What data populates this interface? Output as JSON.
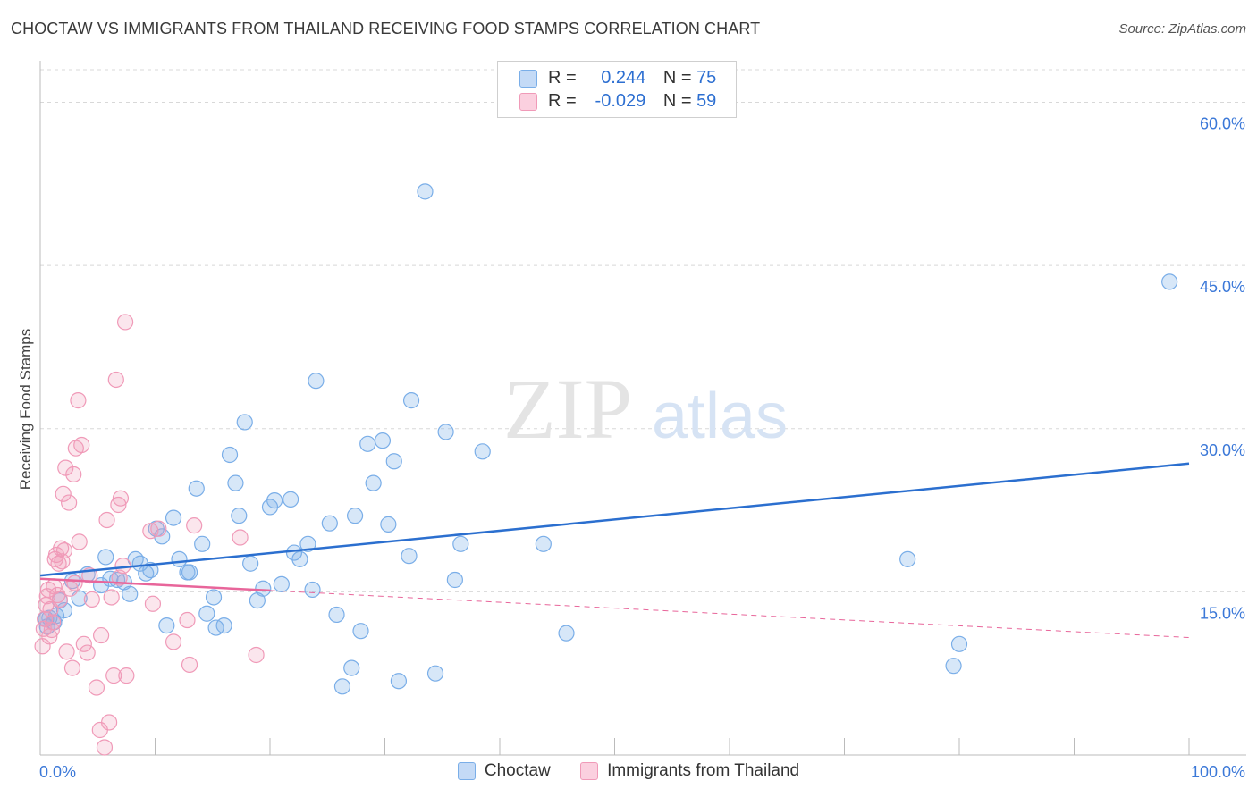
{
  "header": {
    "title": "CHOCTAW VS IMMIGRANTS FROM THAILAND RECEIVING FOOD STAMPS CORRELATION CHART",
    "source": "Source: ZipAtlas.com"
  },
  "watermark": {
    "zip": "ZIP",
    "atlas": "atlas"
  },
  "legend": {
    "rows": [
      {
        "r_label": "R =",
        "r_value": "0.244",
        "n_label": "N =",
        "n_value": "75"
      },
      {
        "r_label": "R =",
        "r_value": "-0.029",
        "n_label": "N =",
        "n_value": "59"
      }
    ]
  },
  "colors": {
    "choctaw": "#7aaee8",
    "choctaw_line": "#2b6fcf",
    "thailand": "#f09ab8",
    "thailand_line": "#e8659a",
    "axis_label": "#3b78d8",
    "grid": "#d8d8d8"
  },
  "chart_data": {
    "type": "scatter",
    "title": "CHOCTAW VS IMMIGRANTS FROM THAILAND RECEIVING FOOD STAMPS CORRELATION CHART",
    "xlabel": "",
    "ylabel": "Receiving Food Stamps",
    "xlim": [
      0,
      100
    ],
    "ylim": [
      0,
      63
    ],
    "y_ticks": [
      15,
      30,
      45,
      60
    ],
    "y_tick_labels": [
      "15.0%",
      "30.0%",
      "45.0%",
      "60.0%"
    ],
    "x_tick_labels": [
      "0.0%",
      "100.0%"
    ],
    "grid": true,
    "series": [
      {
        "name": "Choctaw",
        "r": 0.244,
        "n": 75,
        "trend": {
          "x": [
            0,
            100
          ],
          "y": [
            16.5,
            26.8
          ],
          "dashed_from": null
        },
        "points": [
          [
            0.5,
            12.5
          ],
          [
            0.6,
            11.8
          ],
          [
            0.8,
            12.6
          ],
          [
            1.2,
            12.2
          ],
          [
            1.4,
            12.8
          ],
          [
            1.7,
            14.2
          ],
          [
            2.1,
            13.3
          ],
          [
            2.8,
            16.0
          ],
          [
            3.4,
            14.4
          ],
          [
            4.1,
            16.6
          ],
          [
            5.3,
            15.6
          ],
          [
            5.7,
            18.2
          ],
          [
            6.1,
            16.2
          ],
          [
            6.7,
            16.1
          ],
          [
            7.3,
            15.9
          ],
          [
            7.8,
            14.8
          ],
          [
            8.3,
            18.0
          ],
          [
            8.7,
            17.6
          ],
          [
            9.2,
            16.7
          ],
          [
            9.6,
            17.0
          ],
          [
            10.1,
            20.8
          ],
          [
            10.6,
            20.1
          ],
          [
            11.0,
            11.9
          ],
          [
            11.6,
            21.8
          ],
          [
            12.1,
            18.0
          ],
          [
            12.8,
            16.8
          ],
          [
            13.0,
            16.8
          ],
          [
            13.6,
            24.5
          ],
          [
            14.1,
            19.4
          ],
          [
            14.5,
            13.0
          ],
          [
            15.1,
            14.5
          ],
          [
            15.3,
            11.7
          ],
          [
            16.0,
            11.9
          ],
          [
            16.5,
            27.6
          ],
          [
            17.0,
            25.0
          ],
          [
            17.3,
            22.0
          ],
          [
            17.8,
            30.6
          ],
          [
            18.3,
            17.6
          ],
          [
            18.9,
            14.2
          ],
          [
            19.4,
            15.3
          ],
          [
            20.0,
            22.8
          ],
          [
            20.4,
            23.4
          ],
          [
            21.0,
            15.7
          ],
          [
            21.8,
            23.5
          ],
          [
            22.1,
            18.6
          ],
          [
            22.6,
            18.0
          ],
          [
            23.3,
            19.4
          ],
          [
            23.7,
            15.2
          ],
          [
            24.0,
            34.4
          ],
          [
            25.2,
            21.3
          ],
          [
            25.8,
            12.9
          ],
          [
            26.3,
            6.3
          ],
          [
            27.1,
            8.0
          ],
          [
            27.4,
            22.0
          ],
          [
            27.9,
            11.4
          ],
          [
            28.5,
            28.6
          ],
          [
            29.0,
            25.0
          ],
          [
            29.8,
            28.9
          ],
          [
            30.3,
            21.2
          ],
          [
            30.8,
            27.0
          ],
          [
            31.2,
            6.8
          ],
          [
            32.1,
            18.3
          ],
          [
            32.3,
            32.6
          ],
          [
            33.5,
            51.8
          ],
          [
            34.4,
            7.5
          ],
          [
            35.3,
            29.7
          ],
          [
            36.1,
            16.1
          ],
          [
            36.6,
            19.4
          ],
          [
            38.5,
            27.9
          ],
          [
            43.8,
            19.4
          ],
          [
            45.8,
            11.2
          ],
          [
            75.5,
            18.0
          ],
          [
            79.5,
            8.2
          ],
          [
            80.0,
            10.2
          ],
          [
            98.3,
            43.5
          ]
        ]
      },
      {
        "name": "Immigrants from Thailand",
        "r": -0.029,
        "n": 59,
        "trend": {
          "x": [
            0,
            100
          ],
          "y": [
            16.2,
            10.8
          ],
          "dashed_from": 20
        },
        "points": [
          [
            0.2,
            10.0
          ],
          [
            0.3,
            11.6
          ],
          [
            0.4,
            12.5
          ],
          [
            0.5,
            13.8
          ],
          [
            0.6,
            14.6
          ],
          [
            0.7,
            15.2
          ],
          [
            0.8,
            10.9
          ],
          [
            0.9,
            13.4
          ],
          [
            1.0,
            11.5
          ],
          [
            1.1,
            12.2
          ],
          [
            1.2,
            15.5
          ],
          [
            1.3,
            18.0
          ],
          [
            1.4,
            18.4
          ],
          [
            1.5,
            14.7
          ],
          [
            1.6,
            17.6
          ],
          [
            1.7,
            14.3
          ],
          [
            1.8,
            19.0
          ],
          [
            1.9,
            17.8
          ],
          [
            2.0,
            24.0
          ],
          [
            2.1,
            18.8
          ],
          [
            2.2,
            26.4
          ],
          [
            2.3,
            9.5
          ],
          [
            2.5,
            23.2
          ],
          [
            2.6,
            15.3
          ],
          [
            2.8,
            8.0
          ],
          [
            2.9,
            25.8
          ],
          [
            3.0,
            15.8
          ],
          [
            3.1,
            28.2
          ],
          [
            3.3,
            32.6
          ],
          [
            3.4,
            19.6
          ],
          [
            3.6,
            28.5
          ],
          [
            3.8,
            10.2
          ],
          [
            4.1,
            9.4
          ],
          [
            4.3,
            16.5
          ],
          [
            4.5,
            14.3
          ],
          [
            4.9,
            6.2
          ],
          [
            5.2,
            2.3
          ],
          [
            5.3,
            11.0
          ],
          [
            5.6,
            0.7
          ],
          [
            5.8,
            21.6
          ],
          [
            6.0,
            3.0
          ],
          [
            6.2,
            14.5
          ],
          [
            6.4,
            7.3
          ],
          [
            6.6,
            34.5
          ],
          [
            6.8,
            23.0
          ],
          [
            7.0,
            23.6
          ],
          [
            7.2,
            17.4
          ],
          [
            7.4,
            39.8
          ],
          [
            7.5,
            7.3
          ],
          [
            9.6,
            20.6
          ],
          [
            9.8,
            13.9
          ],
          [
            11.6,
            10.4
          ],
          [
            12.8,
            12.4
          ],
          [
            13.0,
            8.3
          ],
          [
            13.4,
            21.1
          ],
          [
            17.4,
            20.0
          ],
          [
            18.8,
            9.2
          ],
          [
            10.3,
            20.8
          ],
          [
            6.9,
            16.3
          ]
        ]
      }
    ]
  },
  "bottom_legend": {
    "items": [
      {
        "label": "Choctaw"
      },
      {
        "label": "Immigrants from Thailand"
      }
    ]
  }
}
